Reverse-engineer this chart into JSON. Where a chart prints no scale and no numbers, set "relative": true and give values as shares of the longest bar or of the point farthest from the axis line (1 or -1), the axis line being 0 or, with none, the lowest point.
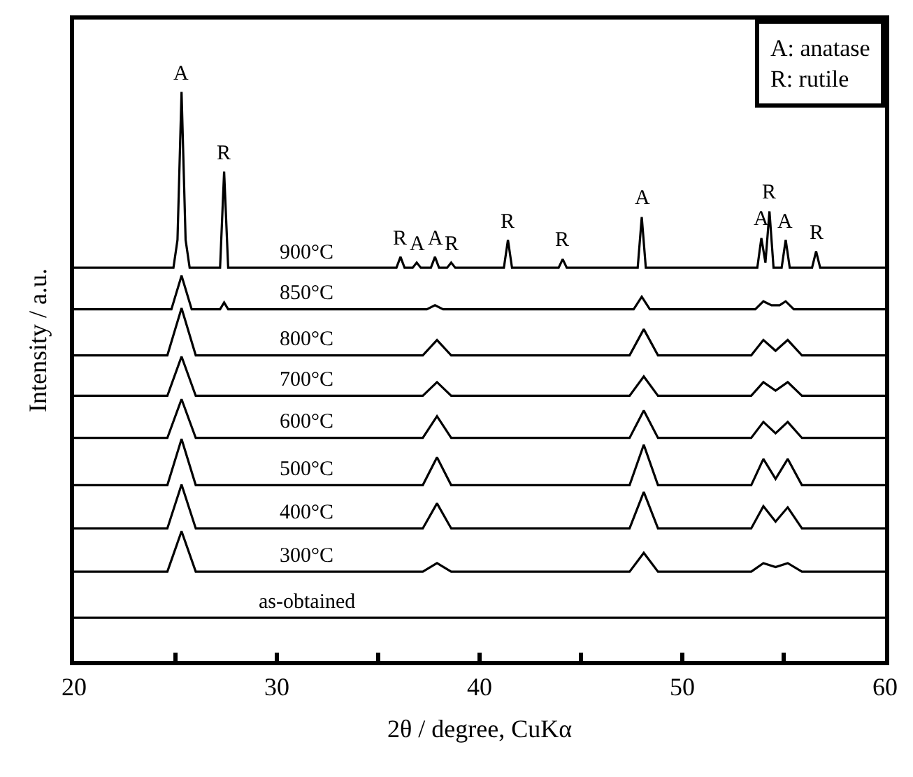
{
  "chart_data": {
    "type": "line",
    "relative": true,
    "xlabel": "2θ / degree, CuKα",
    "ylabel": "Intensity / a.u.",
    "xlim": [
      20,
      60
    ],
    "xticks": [
      20,
      {
        "value": 25,
        "label": null
      },
      30,
      {
        "value": 35,
        "label": null
      },
      40,
      {
        "value": 45,
        "label": null
      },
      50,
      {
        "value": 55,
        "label": null
      },
      60
    ],
    "series": [
      {
        "name": "900°C",
        "color": "#000000",
        "x": [
          20,
          24.9,
          25.1,
          25.3,
          25.5,
          25.7,
          27.2,
          27.4,
          27.6,
          35.9,
          36.1,
          36.3,
          36.7,
          36.9,
          37.1,
          37.6,
          37.8,
          38.0,
          38.4,
          38.6,
          38.8,
          41.2,
          41.4,
          41.6,
          43.9,
          44.1,
          44.3,
          47.8,
          48.0,
          48.2,
          53.7,
          53.9,
          54.1,
          54.3,
          54.5,
          54.9,
          55.1,
          55.3,
          56.4,
          56.6,
          56.8,
          60
        ],
        "values": [
          0.691,
          0.691,
          0.74,
          1.0,
          0.74,
          0.691,
          0.691,
          0.86,
          0.691,
          0.691,
          0.71,
          0.691,
          0.691,
          0.7,
          0.691,
          0.691,
          0.71,
          0.691,
          0.691,
          0.7,
          0.691,
          0.691,
          0.74,
          0.691,
          0.691,
          0.706,
          0.691,
          0.691,
          0.78,
          0.691,
          0.691,
          0.743,
          0.7,
          0.79,
          0.691,
          0.691,
          0.74,
          0.691,
          0.691,
          0.72,
          0.691,
          0.691
        ]
      },
      {
        "name": "850°C",
        "color": "#000000",
        "x": [
          20,
          24.8,
          25.3,
          25.8,
          27.2,
          27.4,
          27.6,
          37.4,
          37.8,
          38.2,
          47.6,
          48.0,
          48.4,
          53.6,
          54.0,
          54.4,
          54.8,
          55.1,
          55.5,
          60
        ],
        "values": [
          0.618,
          0.618,
          0.677,
          0.618,
          0.618,
          0.63,
          0.618,
          0.618,
          0.625,
          0.618,
          0.618,
          0.64,
          0.618,
          0.618,
          0.632,
          0.625,
          0.625,
          0.632,
          0.618,
          0.618
        ]
      },
      {
        "name": "800°C",
        "color": "#000000",
        "x": [
          20,
          24.6,
          25.3,
          26.0,
          37.2,
          37.9,
          38.6,
          47.4,
          48.1,
          48.8,
          53.4,
          54.0,
          54.6,
          55.2,
          55.9,
          60
        ],
        "values": [
          0.537,
          0.537,
          0.62,
          0.537,
          0.537,
          0.564,
          0.537,
          0.537,
          0.583,
          0.537,
          0.537,
          0.564,
          0.545,
          0.564,
          0.537,
          0.537
        ]
      },
      {
        "name": "700°C",
        "color": "#000000",
        "x": [
          20,
          24.6,
          25.3,
          26.0,
          37.2,
          37.9,
          38.6,
          47.4,
          48.1,
          48.8,
          53.4,
          54.0,
          54.6,
          55.2,
          55.9,
          60
        ],
        "values": [
          0.466,
          0.466,
          0.535,
          0.466,
          0.466,
          0.49,
          0.466,
          0.466,
          0.5,
          0.466,
          0.466,
          0.49,
          0.475,
          0.49,
          0.466,
          0.466
        ]
      },
      {
        "name": "600°C",
        "color": "#000000",
        "x": [
          20,
          24.6,
          25.3,
          26.0,
          37.2,
          37.9,
          38.6,
          47.4,
          48.1,
          48.8,
          53.4,
          54.0,
          54.6,
          55.2,
          55.9,
          60
        ],
        "values": [
          0.392,
          0.392,
          0.46,
          0.392,
          0.392,
          0.43,
          0.392,
          0.392,
          0.44,
          0.392,
          0.392,
          0.42,
          0.4,
          0.42,
          0.392,
          0.392
        ]
      },
      {
        "name": "500°C",
        "color": "#000000",
        "x": [
          20,
          24.6,
          25.3,
          26.0,
          37.2,
          37.9,
          38.6,
          47.4,
          48.1,
          48.8,
          53.4,
          54.0,
          54.6,
          55.2,
          55.9,
          60
        ],
        "values": [
          0.309,
          0.309,
          0.39,
          0.309,
          0.309,
          0.358,
          0.309,
          0.309,
          0.38,
          0.309,
          0.309,
          0.355,
          0.32,
          0.355,
          0.309,
          0.309
        ]
      },
      {
        "name": "400°C",
        "color": "#000000",
        "x": [
          20,
          24.6,
          25.3,
          26.0,
          37.2,
          37.9,
          38.6,
          47.4,
          48.1,
          48.8,
          53.4,
          54.0,
          54.6,
          55.2,
          55.9,
          60
        ],
        "values": [
          0.233,
          0.233,
          0.31,
          0.233,
          0.233,
          0.277,
          0.233,
          0.233,
          0.297,
          0.233,
          0.233,
          0.272,
          0.245,
          0.27,
          0.233,
          0.233
        ]
      },
      {
        "name": "300°C",
        "color": "#000000",
        "x": [
          20,
          24.6,
          25.3,
          26.0,
          37.2,
          37.9,
          38.6,
          47.4,
          48.1,
          48.8,
          53.4,
          54.0,
          54.6,
          55.2,
          55.9,
          60
        ],
        "values": [
          0.157,
          0.157,
          0.228,
          0.157,
          0.157,
          0.172,
          0.157,
          0.157,
          0.19,
          0.157,
          0.157,
          0.172,
          0.165,
          0.172,
          0.157,
          0.157
        ]
      },
      {
        "name": "as-obtained",
        "color": "#000000",
        "x": [
          20,
          60
        ],
        "values": [
          0.076,
          0.076
        ]
      }
    ],
    "annotations": [
      {
        "text": "A",
        "x": 25.3,
        "y": 1.0
      },
      {
        "text": "R",
        "x": 27.4,
        "y": 0.86
      },
      {
        "text": "R",
        "x": 36.1,
        "y": 0.71
      },
      {
        "text": "A",
        "x": 36.9,
        "y": 0.7
      },
      {
        "text": "A",
        "x": 37.8,
        "y": 0.71
      },
      {
        "text": "R",
        "x": 38.6,
        "y": 0.7
      },
      {
        "text": "R",
        "x": 41.4,
        "y": 0.74
      },
      {
        "text": "R",
        "x": 44.1,
        "y": 0.706
      },
      {
        "text": "A",
        "x": 48.0,
        "y": 0.78
      },
      {
        "text": "A",
        "x": 53.9,
        "y": 0.743
      },
      {
        "text": "R",
        "x": 54.3,
        "y": 0.79
      },
      {
        "text": "A",
        "x": 55.1,
        "y": 0.74
      },
      {
        "text": "R",
        "x": 56.6,
        "y": 0.72
      },
      "A: anatase",
      "R: rutile"
    ]
  }
}
